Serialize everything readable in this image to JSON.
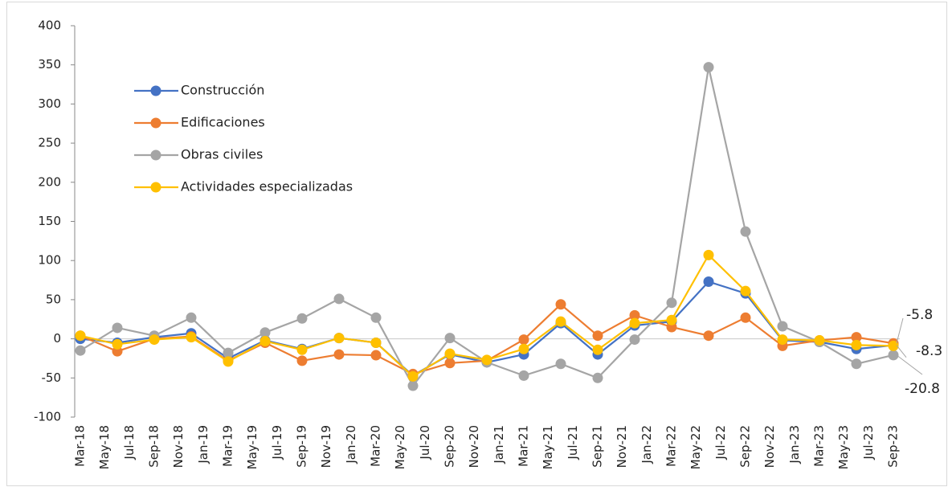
{
  "chart_data": {
    "type": "line",
    "x": [
      "Mar-18",
      "Jun-18",
      "Sep-18",
      "Dec-18",
      "Mar-19",
      "Jun-19",
      "Sep-19",
      "Dec-19",
      "Mar-20",
      "Jun-20",
      "Sep-20",
      "Dec-20",
      "Mar-21",
      "Jun-21",
      "Sep-21",
      "Dec-21",
      "Mar-22",
      "Jun-22",
      "Sep-22",
      "Dec-22",
      "Mar-23",
      "Jun-23",
      "Sep-23"
    ],
    "xticks": [
      "Mar-18",
      "May-18",
      "Jul-18",
      "Sep-18",
      "Nov-18",
      "Jan-19",
      "Mar-19",
      "May-19",
      "Jul-19",
      "Sep-19",
      "Nov-19",
      "Jan-20",
      "Mar-20",
      "May-20",
      "Jul-20",
      "Sep-20",
      "Nov-20",
      "Jan-21",
      "Mar-21",
      "May-21",
      "Jul-21",
      "Sep-21",
      "Nov-21",
      "Jan-22",
      "Mar-22",
      "May-22",
      "Jul-22",
      "Sep-22",
      "Nov-22",
      "Jan-23",
      "Mar-23",
      "May-23",
      "Jul-23",
      "Sep-23"
    ],
    "ylim": [
      -100,
      400
    ],
    "yticks": [
      -100,
      -50,
      0,
      50,
      100,
      150,
      200,
      250,
      300,
      350,
      400
    ],
    "grid": false,
    "legend": "upper-left",
    "series": [
      {
        "name": "Construcción",
        "color": "#4472c4",
        "values": [
          0,
          -5,
          2,
          7,
          -25,
          -2,
          -13,
          1,
          -5,
          -47,
          -20,
          -30,
          -20,
          20,
          -20,
          17,
          22,
          73,
          58,
          -2,
          -4,
          -13,
          -8.3
        ]
      },
      {
        "name": "Edificaciones",
        "color": "#ed7d31",
        "values": [
          4,
          -16,
          0,
          3,
          -28,
          -5,
          -28,
          -20,
          -21,
          -45,
          -31,
          -28,
          -1,
          44,
          4,
          30,
          15,
          4,
          27,
          -9,
          -2,
          2,
          -5.8
        ]
      },
      {
        "name": "Obras civiles",
        "color": "#a5a5a5",
        "values": [
          -15,
          14,
          4,
          27,
          -18,
          8,
          26,
          51,
          27,
          -60,
          1,
          -30,
          -47,
          -32,
          -50,
          -1,
          46,
          347,
          137,
          16,
          -4,
          -32,
          -20.8
        ]
      },
      {
        "name": "Actividades especializadas",
        "color": "#ffc000",
        "values": [
          4,
          -7,
          -1,
          2,
          -29,
          -3,
          -14,
          1,
          -5,
          -48,
          -19,
          -27,
          -13,
          22,
          -14,
          20,
          24,
          107,
          61,
          -1,
          -2,
          -8,
          -9
        ]
      }
    ]
  }
}
